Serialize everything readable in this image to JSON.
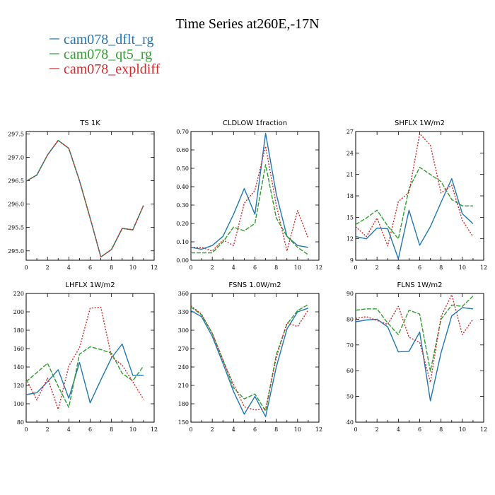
{
  "figure": {
    "title": "Time Series at260E,-17N"
  },
  "chart_data": [
    {
      "type": "line",
      "title": "TS   1K",
      "x": [
        0,
        1,
        2,
        3,
        4,
        5,
        6,
        7,
        8,
        9,
        10,
        11
      ],
      "xlim": [
        0,
        12
      ],
      "xticks": [
        0,
        2,
        4,
        6,
        8,
        10,
        12
      ],
      "ylim": [
        294.8,
        297.55
      ],
      "yticks": [
        295.0,
        295.5,
        296.0,
        296.5,
        297.0,
        297.5
      ],
      "ytick_labels": [
        "295.0",
        "295.5",
        "296.0",
        "296.5",
        "297.0",
        "297.5"
      ],
      "series": [
        {
          "name": "cam078_dflt_rg",
          "color": "#1f77b4",
          "dash": "",
          "values": [
            296.49,
            296.62,
            297.05,
            297.36,
            297.19,
            296.5,
            295.7,
            294.87,
            295.03,
            295.48,
            295.45,
            295.97
          ]
        },
        {
          "name": "cam078_qt5_rg",
          "color": "#2ca02c",
          "dash": "6,2",
          "values": [
            296.49,
            296.62,
            297.05,
            297.36,
            297.19,
            296.5,
            295.7,
            294.87,
            295.03,
            295.48,
            295.45,
            295.97
          ]
        },
        {
          "name": "cam078_expldiff",
          "color": "#d62728",
          "dash": "2,2",
          "values": [
            296.49,
            296.62,
            297.05,
            297.36,
            297.19,
            296.5,
            295.7,
            294.87,
            295.03,
            295.48,
            295.45,
            295.97
          ]
        }
      ]
    },
    {
      "type": "line",
      "title": "CLDLOW   1fraction",
      "x": [
        0,
        1,
        2,
        3,
        4,
        5,
        6,
        7,
        8,
        9,
        10,
        11
      ],
      "xlim": [
        0,
        12
      ],
      "xticks": [
        0,
        2,
        4,
        6,
        8,
        10,
        12
      ],
      "ylim": [
        0,
        0.7
      ],
      "yticks": [
        0,
        0.1,
        0.2,
        0.3,
        0.4,
        0.5,
        0.6,
        0.7
      ],
      "ytick_labels": [
        "0.00",
        "0.10",
        "0.20",
        "0.30",
        "0.40",
        "0.50",
        "0.60",
        "0.70"
      ],
      "series": [
        {
          "name": "cam078_dflt_rg",
          "color": "#1f77b4",
          "dash": "",
          "values": [
            0.07,
            0.06,
            0.08,
            0.13,
            0.25,
            0.39,
            0.25,
            0.69,
            0.36,
            0.13,
            0.08,
            0.07
          ]
        },
        {
          "name": "cam078_qt5_rg",
          "color": "#2ca02c",
          "dash": "6,2",
          "values": [
            0.04,
            0.04,
            0.04,
            0.1,
            0.18,
            0.16,
            0.2,
            0.52,
            0.23,
            0.13,
            0.07,
            0.03
          ]
        },
        {
          "name": "cam078_expldiff",
          "color": "#d62728",
          "dash": "2,2",
          "values": [
            0.07,
            0.07,
            0.05,
            0.11,
            0.08,
            0.31,
            0.38,
            0.62,
            0.3,
            0.05,
            0.27,
            0.12
          ]
        }
      ]
    },
    {
      "type": "line",
      "title": "SHFLX   1W/m2",
      "x": [
        0,
        1,
        2,
        3,
        4,
        5,
        6,
        7,
        8,
        9,
        10,
        11
      ],
      "xlim": [
        0,
        12
      ],
      "xticks": [
        0,
        2,
        4,
        6,
        8,
        10,
        12
      ],
      "ylim": [
        9,
        27
      ],
      "yticks": [
        9,
        12,
        15,
        18,
        21,
        24,
        27
      ],
      "ytick_labels": [
        "9",
        "12",
        "15",
        "18",
        "21",
        "24",
        "27"
      ],
      "series": [
        {
          "name": "cam078_dflt_rg",
          "color": "#1f77b4",
          "dash": "",
          "values": [
            12.3,
            12.0,
            13.5,
            13.4,
            9.2,
            16.0,
            11.1,
            13.7,
            17.1,
            20.4,
            15.5,
            14.1
          ]
        },
        {
          "name": "cam078_qt5_rg",
          "color": "#2ca02c",
          "dash": "6,2",
          "values": [
            14.0,
            14.9,
            16.0,
            13.8,
            12.0,
            19.0,
            22.0,
            21.0,
            20.0,
            17.5,
            16.6,
            16.6
          ]
        },
        {
          "name": "cam078_expldiff",
          "color": "#d62728",
          "dash": "2,2",
          "values": [
            13.7,
            12.3,
            14.9,
            11.0,
            17.2,
            18.5,
            26.7,
            25.1,
            18.4,
            19.5,
            14.6,
            12.3
          ]
        }
      ]
    },
    {
      "type": "line",
      "title": "LHFLX   1W/m2",
      "x": [
        0,
        1,
        2,
        3,
        4,
        5,
        6,
        7,
        8,
        9,
        10,
        11
      ],
      "xlim": [
        0,
        12
      ],
      "xticks": [
        0,
        2,
        4,
        6,
        8,
        10,
        12
      ],
      "ylim": [
        80,
        220
      ],
      "yticks": [
        80,
        100,
        120,
        140,
        160,
        180,
        200,
        220
      ],
      "ytick_labels": [
        "80",
        "100",
        "120",
        "140",
        "160",
        "180",
        "200",
        "220"
      ],
      "series": [
        {
          "name": "cam078_dflt_rg",
          "color": "#1f77b4",
          "dash": "",
          "values": [
            110,
            112,
            124,
            137,
            106,
            145,
            101,
            126,
            150,
            165,
            131,
            131
          ]
        },
        {
          "name": "cam078_qt5_rg",
          "color": "#2ca02c",
          "dash": "6,2",
          "values": [
            124,
            134,
            144,
            119,
            96,
            154,
            162,
            159,
            155,
            133,
            125,
            141
          ]
        },
        {
          "name": "cam078_expldiff",
          "color": "#d62728",
          "dash": "2,2",
          "values": [
            127,
            104,
            128,
            94,
            141,
            161,
            204,
            205,
            151,
            142,
            124,
            105
          ]
        }
      ]
    },
    {
      "type": "line",
      "title": "FSNS   1.0W/m2",
      "x": [
        0,
        1,
        2,
        3,
        4,
        5,
        6,
        7,
        8,
        9,
        10,
        11
      ],
      "xlim": [
        0,
        12
      ],
      "xticks": [
        0,
        2,
        4,
        6,
        8,
        10,
        12
      ],
      "ylim": [
        150,
        360
      ],
      "yticks": [
        150,
        180,
        210,
        240,
        270,
        300,
        330,
        360
      ],
      "ytick_labels": [
        "150",
        "180",
        "210",
        "240",
        "270",
        "300",
        "330",
        "360"
      ],
      "series": [
        {
          "name": "cam078_dflt_rg",
          "color": "#1f77b4",
          "dash": "",
          "values": [
            332,
            322,
            290,
            246,
            200,
            163,
            192,
            159,
            240,
            302,
            330,
            336
          ]
        },
        {
          "name": "cam078_qt5_rg",
          "color": "#2ca02c",
          "dash": "6,2",
          "values": [
            338,
            325,
            295,
            252,
            206,
            188,
            196,
            168,
            260,
            310,
            332,
            342
          ]
        },
        {
          "name": "cam078_expldiff",
          "color": "#d62728",
          "dash": "2,2",
          "values": [
            340,
            326,
            295,
            250,
            212,
            175,
            170,
            172,
            255,
            312,
            306,
            333
          ]
        }
      ]
    },
    {
      "type": "line",
      "title": "FLNS   1W/m2",
      "x": [
        0,
        1,
        2,
        3,
        4,
        5,
        6,
        7,
        8,
        9,
        10,
        11
      ],
      "xlim": [
        0,
        12
      ],
      "xticks": [
        0,
        2,
        4,
        6,
        8,
        10,
        12
      ],
      "ylim": [
        40,
        90
      ],
      "yticks": [
        40,
        50,
        60,
        70,
        80,
        90
      ],
      "ytick_labels": [
        "40",
        "50",
        "60",
        "70",
        "80",
        "90"
      ],
      "series": [
        {
          "name": "cam078_dflt_rg",
          "color": "#1f77b4",
          "dash": "",
          "values": [
            79,
            79.7,
            80,
            77,
            67.3,
            67.5,
            75,
            48.3,
            67,
            81.3,
            84.5,
            84
          ]
        },
        {
          "name": "cam078_qt5_rg",
          "color": "#2ca02c",
          "dash": "6,2",
          "values": [
            83.5,
            84,
            84,
            78.5,
            74,
            83.5,
            82,
            59.8,
            80,
            85.5,
            85,
            89
          ]
        },
        {
          "name": "cam078_expldiff",
          "color": "#d62728",
          "dash": "2,2",
          "values": [
            80.3,
            81,
            79.5,
            78,
            85,
            73,
            71,
            55.5,
            81,
            89.5,
            74,
            80
          ]
        }
      ]
    }
  ]
}
